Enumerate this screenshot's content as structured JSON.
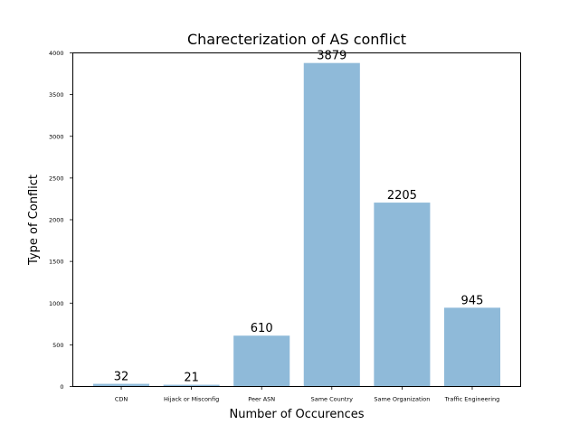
{
  "chart_data": {
    "type": "bar",
    "title": "Charecterization of AS conflict",
    "xlabel": "Number of Occurences",
    "ylabel": "Type of Conflict",
    "categories": [
      "CDN",
      "Hijack or Misconfig",
      "Peer ASN",
      "Same Country",
      "Same Organization",
      "Traffic Engineering"
    ],
    "values": [
      32,
      21,
      610,
      3879,
      2205,
      945
    ],
    "data_labels": [
      "32",
      "21",
      "610",
      "3879",
      "2205",
      "945"
    ],
    "ylim": [
      0,
      4000
    ],
    "yticks": [
      0,
      500,
      1000,
      1500,
      2000,
      2500,
      3000,
      3500,
      4000
    ],
    "bar_color": "#8fbad9",
    "grid": false,
    "legend": "none"
  }
}
